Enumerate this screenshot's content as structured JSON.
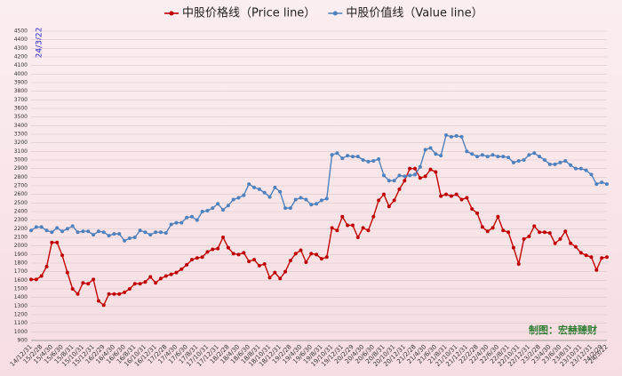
{
  "chart_data": {
    "type": "line",
    "annotation": "24/3/22",
    "credit": "制图：宏赫臻财",
    "categories": [
      "14/12/31",
      null,
      "15/2/28",
      null,
      "15/4/30",
      null,
      "15/6/30",
      null,
      "15/8/31",
      null,
      "15/10/31",
      null,
      "15/12/31",
      null,
      "16/2/29",
      null,
      "16/4/30",
      null,
      "16/6/30",
      null,
      "16/8/31",
      null,
      "16/10/31",
      null,
      "16/12/31",
      null,
      "17/2/28",
      null,
      "17/4/30",
      null,
      "17/6/30",
      null,
      "17/8/31",
      null,
      "17/10/31",
      null,
      "17/12/31",
      null,
      "18/2/28",
      null,
      "18/4/30",
      null,
      "18/6/30",
      null,
      "18/8/31",
      null,
      "18/10/31",
      null,
      "18/12/31",
      null,
      "19/2/28",
      null,
      "19/4/30",
      null,
      "19/6/30",
      null,
      "19/8/31",
      null,
      "19/10/31",
      null,
      "19/12/31",
      null,
      "20/2/29",
      null,
      "20/4/30",
      null,
      "20/6/30",
      null,
      "20/8/31",
      null,
      "20/10/31",
      null,
      "20/12/31",
      null,
      "21/2/28",
      null,
      "21/4/30",
      null,
      "21/6/30",
      null,
      "21/8/31",
      null,
      "21/10/31",
      null,
      "21/12/31",
      null,
      "22/2/28",
      null,
      "22/4/30",
      null,
      "22/6/30",
      null,
      "22/8/31",
      null,
      "22/10/31",
      null,
      "22/12/31",
      null,
      "23/2/28",
      null,
      "23/4/30",
      null,
      "23/6/30",
      null,
      "23/8/31",
      null,
      "23/10/31",
      null,
      "23/12/31",
      null,
      "24/2/29",
      "24/3/22"
    ],
    "series": [
      {
        "name": "中股价格线（Price line）",
        "color": "#c00000",
        "values": [
          1610,
          1610,
          1650,
          1760,
          2040,
          2040,
          1890,
          1690,
          1500,
          1440,
          1570,
          1560,
          1610,
          1360,
          1310,
          1440,
          1440,
          1440,
          1460,
          1500,
          1560,
          1560,
          1580,
          1640,
          1570,
          1620,
          1650,
          1670,
          1690,
          1730,
          1780,
          1840,
          1860,
          1870,
          1930,
          1960,
          1970,
          2100,
          1980,
          1910,
          1900,
          1920,
          1820,
          1840,
          1770,
          1790,
          1630,
          1690,
          1620,
          1700,
          1830,
          1910,
          1950,
          1810,
          1910,
          1900,
          1850,
          1870,
          2210,
          2180,
          2340,
          2240,
          2240,
          2100,
          2210,
          2180,
          2340,
          2530,
          2600,
          2460,
          2530,
          2660,
          2760,
          2900,
          2900,
          2790,
          2810,
          2890,
          2860,
          2580,
          2600,
          2580,
          2600,
          2540,
          2560,
          2430,
          2380,
          2220,
          2170,
          2210,
          2340,
          2180,
          2160,
          1980,
          1790,
          2080,
          2110,
          2230,
          2160,
          2160,
          2150,
          2030,
          2080,
          2170,
          2030,
          1990,
          1920,
          1890,
          1870,
          1720,
          1860,
          1870
        ]
      },
      {
        "name": "中股价值线（Value line）",
        "color": "#4f81bd",
        "values": [
          2180,
          2220,
          2220,
          2180,
          2160,
          2210,
          2170,
          2200,
          2230,
          2160,
          2170,
          2170,
          2130,
          2170,
          2160,
          2120,
          2140,
          2140,
          2060,
          2090,
          2100,
          2180,
          2160,
          2130,
          2160,
          2160,
          2150,
          2250,
          2270,
          2270,
          2330,
          2340,
          2300,
          2400,
          2410,
          2440,
          2490,
          2420,
          2470,
          2540,
          2560,
          2590,
          2720,
          2680,
          2660,
          2620,
          2570,
          2680,
          2630,
          2440,
          2440,
          2540,
          2560,
          2540,
          2480,
          2490,
          2530,
          2550,
          3060,
          3080,
          3020,
          3050,
          3040,
          3040,
          3000,
          2980,
          2990,
          3010,
          2820,
          2760,
          2760,
          2820,
          2810,
          2820,
          2830,
          2920,
          3120,
          3140,
          3070,
          3050,
          3290,
          3270,
          3280,
          3270,
          3100,
          3070,
          3040,
          3060,
          3040,
          3060,
          3040,
          3040,
          3030,
          2970,
          2990,
          3000,
          3060,
          3080,
          3040,
          3000,
          2950,
          2950,
          2970,
          2990,
          2940,
          2900,
          2900,
          2880,
          2830,
          2720,
          2740,
          2720
        ]
      }
    ],
    "ylim": [
      900,
      4500
    ],
    "yticks": [
      900,
      1000,
      1100,
      1200,
      1300,
      1400,
      1500,
      1600,
      1700,
      1800,
      1900,
      2000,
      2100,
      2200,
      2300,
      2400,
      2500,
      2600,
      2700,
      2800,
      2900,
      3000,
      3100,
      3200,
      3300,
      3400,
      3500,
      3600,
      3700,
      3800,
      3900,
      4000,
      4100,
      4200,
      4300,
      4400,
      4500
    ],
    "grid": true
  }
}
